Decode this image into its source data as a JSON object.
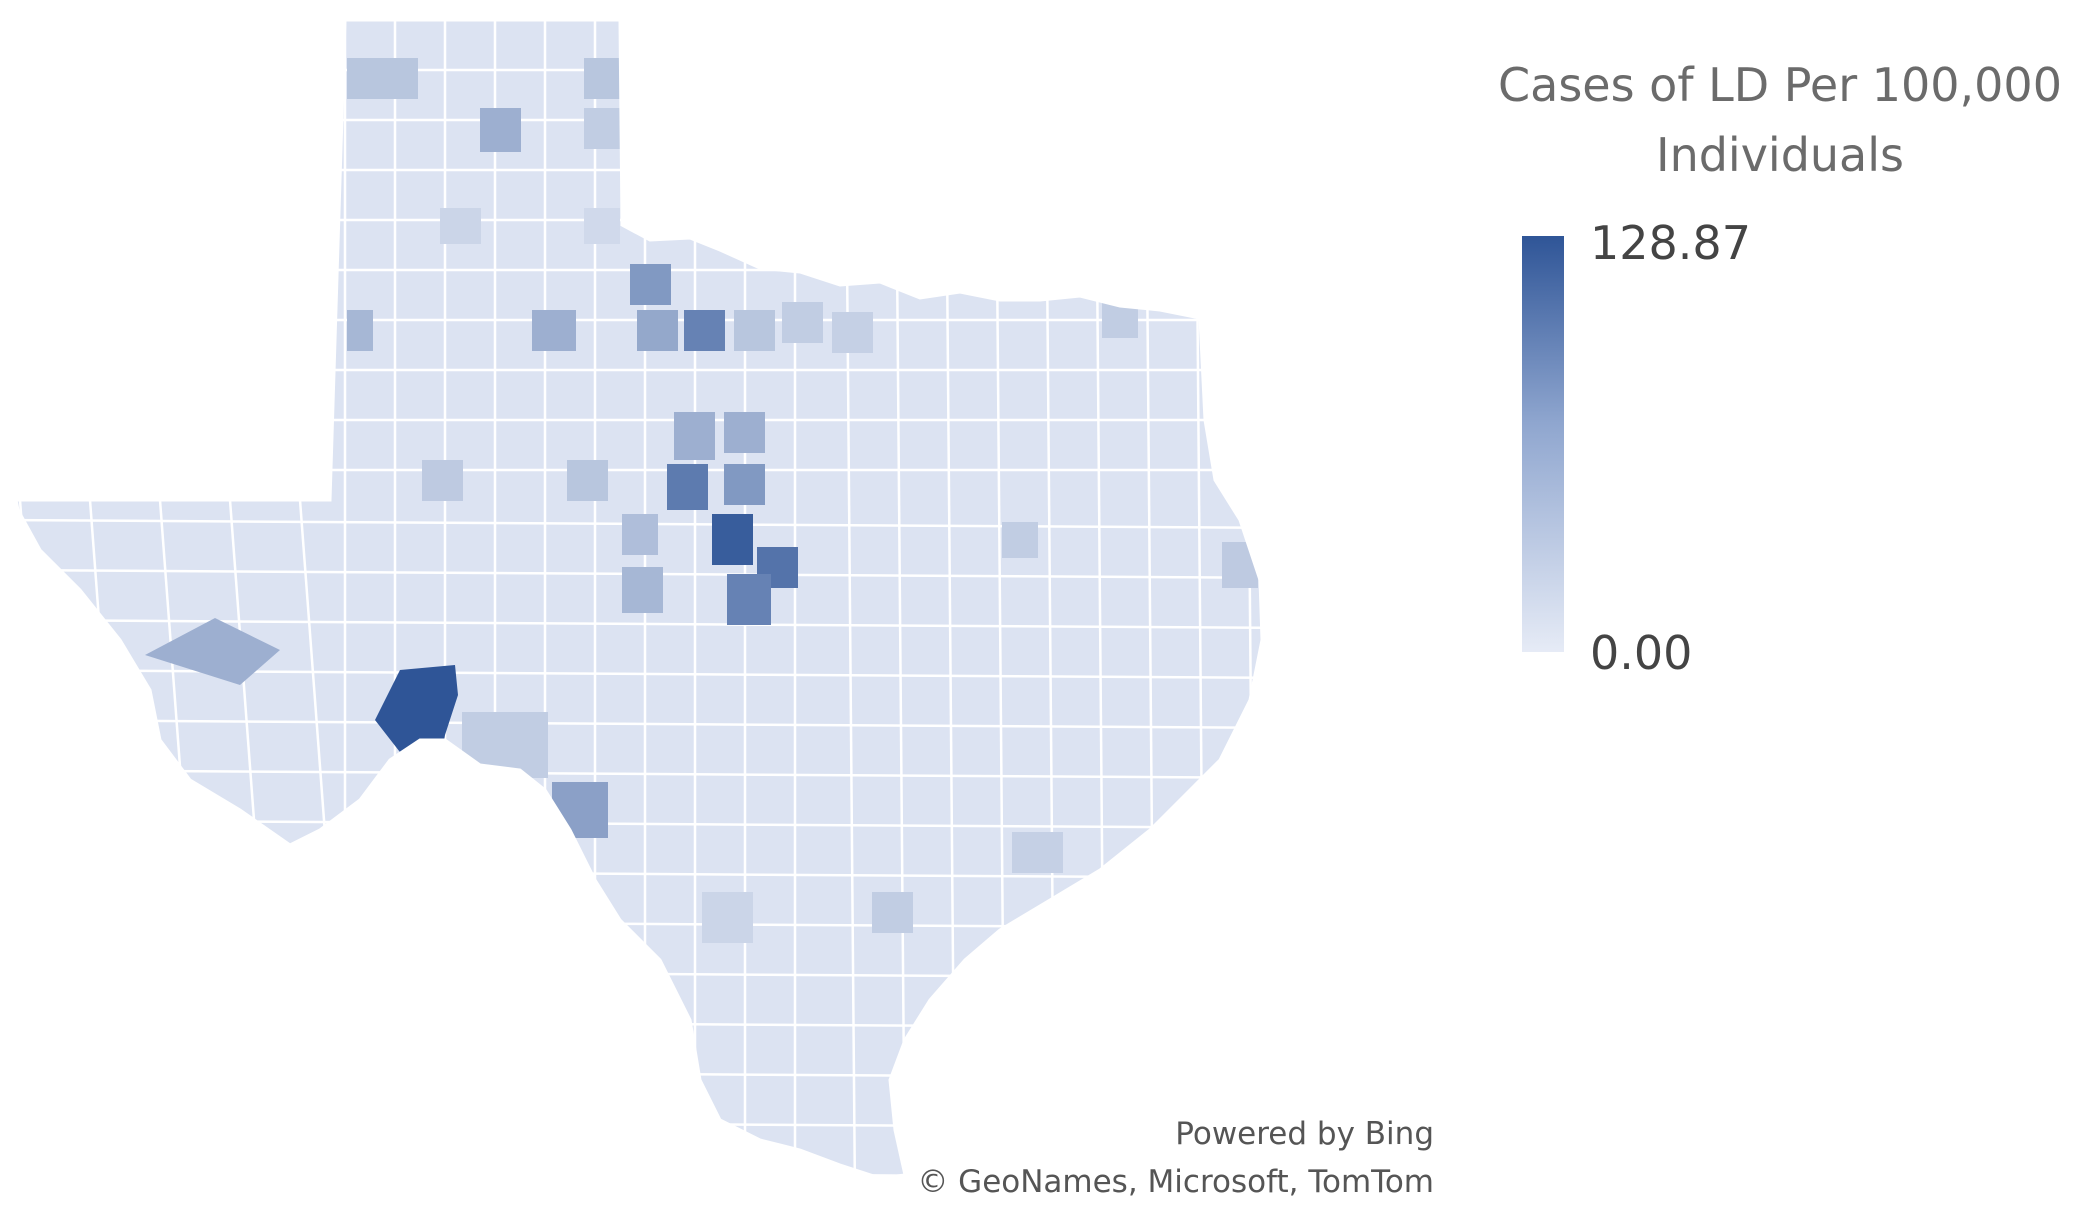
{
  "legend": {
    "title_line1": "Cases of LD Per 100,000",
    "title_line2": "Individuals",
    "max_label": "128.87",
    "min_label": "0.00",
    "max_value": 128.87,
    "min_value": 0.0,
    "color_max": "#2f5597",
    "color_min": "#e6ebf6"
  },
  "attribution": {
    "line1": "Powered by Bing",
    "line2": "© GeoNames, Microsoft, TomTom"
  },
  "map": {
    "region": "Texas",
    "base_fill": "#dce3f2",
    "border_color": "#ffffff"
  }
}
